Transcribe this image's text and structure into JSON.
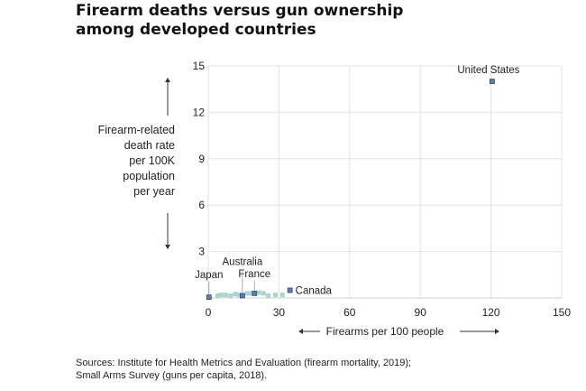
{
  "title": {
    "line1": "Firearm deaths versus gun ownership",
    "line2": "among developed countries"
  },
  "chart_data": {
    "type": "scatter",
    "title": "Firearm deaths versus gun ownership among developed countries",
    "xlabel": "Firearms per 100 people",
    "ylabel_lines": [
      "Firearm-related",
      "death rate",
      "per 100K",
      "population",
      "per year"
    ],
    "xlim": [
      0,
      150
    ],
    "ylim": [
      0,
      15
    ],
    "xticks": [
      0,
      30,
      60,
      90,
      120,
      150
    ],
    "yticks": [
      3,
      6,
      9,
      12,
      15
    ],
    "grid": true,
    "highlight_color": "#5b7fa8",
    "other_color": "#a9d4d0",
    "points": [
      {
        "label": "United States",
        "x": 120.5,
        "y": 14.0,
        "highlight": true
      },
      {
        "label": "Canada",
        "x": 34.7,
        "y": 0.5,
        "highlight": true
      },
      {
        "label": "France",
        "x": 19.6,
        "y": 0.3,
        "highlight": true
      },
      {
        "label": "Australia",
        "x": 14.5,
        "y": 0.15,
        "highlight": true
      },
      {
        "label": "Japan",
        "x": 0.3,
        "y": 0.05,
        "highlight": true
      },
      {
        "label": "",
        "x": 4.0,
        "y": 0.15,
        "highlight": false
      },
      {
        "label": "",
        "x": 5.5,
        "y": 0.2,
        "highlight": false
      },
      {
        "label": "",
        "x": 7.5,
        "y": 0.2,
        "highlight": false
      },
      {
        "label": "",
        "x": 9.5,
        "y": 0.15,
        "highlight": false
      },
      {
        "label": "",
        "x": 11.5,
        "y": 0.25,
        "highlight": false
      },
      {
        "label": "",
        "x": 13.0,
        "y": 0.2,
        "highlight": false
      },
      {
        "label": "",
        "x": 16.5,
        "y": 0.3,
        "highlight": false
      },
      {
        "label": "",
        "x": 18.0,
        "y": 0.3,
        "highlight": false
      },
      {
        "label": "",
        "x": 21.5,
        "y": 0.35,
        "highlight": false
      },
      {
        "label": "",
        "x": 23.5,
        "y": 0.3,
        "highlight": false
      },
      {
        "label": "",
        "x": 25.5,
        "y": 0.15,
        "highlight": false
      },
      {
        "label": "",
        "x": 28.5,
        "y": 0.2,
        "highlight": false
      },
      {
        "label": "",
        "x": 31.5,
        "y": 0.2,
        "highlight": false
      }
    ]
  },
  "sources": {
    "line1": "Sources: Institute for Health Metrics and Evaluation (firearm mortality, 2019);",
    "line2": "Small Arms Survey (guns per capita, 2018)."
  }
}
